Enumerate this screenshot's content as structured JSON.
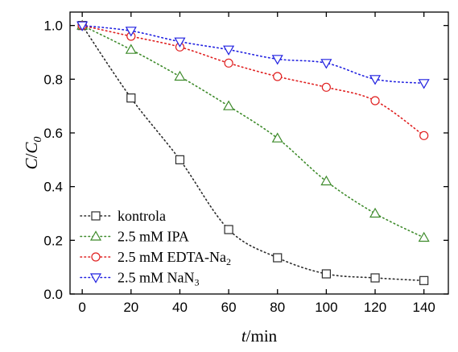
{
  "chart_data": {
    "type": "line",
    "xlabel_italic": "t",
    "xlabel_rest": "/min",
    "ylabel_main": "C",
    "ylabel_slash": "/",
    "ylabel_sub_base": "C",
    "ylabel_sub": "0",
    "x": [
      0,
      20,
      40,
      60,
      80,
      100,
      120,
      140
    ],
    "xlim": [
      -5,
      150
    ],
    "ylim": [
      0,
      1.05
    ],
    "xticks": [
      0,
      20,
      40,
      60,
      80,
      100,
      120,
      140
    ],
    "yticks": [
      0.0,
      0.2,
      0.4,
      0.6,
      0.8,
      1.0
    ],
    "ytick_labels": [
      "0.0",
      "0.2",
      "0.4",
      "0.6",
      "0.8",
      "1.0"
    ],
    "grid": false,
    "legend_position": "bottom-left",
    "series": [
      {
        "name": "kontrola",
        "name_main": "kontrola",
        "name_sub": "",
        "marker": "square",
        "color": "#2b2b2b",
        "values": [
          1.0,
          0.73,
          0.5,
          0.24,
          0.135,
          0.075,
          0.06,
          0.05
        ]
      },
      {
        "name": "2.5 mM IPA",
        "name_main": "2.5 mM IPA",
        "name_sub": "",
        "marker": "triangle-up",
        "color": "#3d8a2a",
        "values": [
          1.0,
          0.91,
          0.81,
          0.7,
          0.58,
          0.42,
          0.3,
          0.21
        ]
      },
      {
        "name": "2.5 mM EDTA-Na2",
        "name_main": "2.5 mM EDTA-Na",
        "name_sub": "2",
        "marker": "circle",
        "color": "#e02020",
        "values": [
          1.0,
          0.96,
          0.92,
          0.86,
          0.81,
          0.77,
          0.72,
          0.59
        ]
      },
      {
        "name": "2.5 mM NaN3",
        "name_main": "2.5 mM NaN",
        "name_sub": "3",
        "marker": "triangle-down",
        "color": "#2020e0",
        "values": [
          1.0,
          0.98,
          0.94,
          0.91,
          0.875,
          0.86,
          0.8,
          0.785
        ]
      }
    ]
  }
}
